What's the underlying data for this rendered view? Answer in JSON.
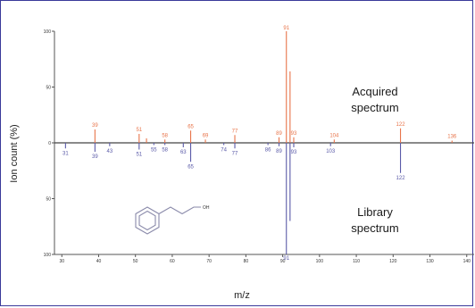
{
  "chart_data": {
    "type": "bar",
    "title": "",
    "xlabel": "m/z",
    "ylabel": "Ion count (%)",
    "xlim": [
      28,
      142
    ],
    "ylim": [
      -100,
      100
    ],
    "xticks": [
      "30",
      "40",
      "50",
      "60",
      "70",
      "80",
      "90",
      "100",
      "110",
      "120",
      "130",
      "140"
    ],
    "yticks": [
      {
        "value": 100,
        "label": "100"
      },
      {
        "value": 50,
        "label": "50"
      },
      {
        "value": 0,
        "label": "0"
      },
      {
        "value": -50,
        "label": "50"
      },
      {
        "value": -100,
        "label": "100"
      }
    ],
    "grid": false,
    "annotations": [
      {
        "lines": [
          "Acquired",
          "spectrum"
        ]
      },
      {
        "lines": [
          "Library",
          "spectrum"
        ]
      }
    ],
    "series": [
      {
        "color": "#e8744a",
        "points": [
          {
            "x": 39,
            "y": 12,
            "label": "39"
          },
          {
            "x": 51,
            "y": 8,
            "label": "51"
          },
          {
            "x": 53,
            "y": 4,
            "label": ""
          },
          {
            "x": 58,
            "y": 3,
            "label": "58"
          },
          {
            "x": 65,
            "y": 11,
            "label": "65"
          },
          {
            "x": 69,
            "y": 3,
            "label": "69"
          },
          {
            "x": 77,
            "y": 7,
            "label": "77"
          },
          {
            "x": 89,
            "y": 5,
            "label": "89"
          },
          {
            "x": 91,
            "y": 100,
            "label": "91"
          },
          {
            "x": 92,
            "y": 64,
            "label": ""
          },
          {
            "x": 93,
            "y": 5,
            "label": "93"
          },
          {
            "x": 104,
            "y": 3,
            "label": "104"
          },
          {
            "x": 122,
            "y": 13,
            "label": "122"
          },
          {
            "x": 136,
            "y": 2,
            "label": "136"
          }
        ]
      },
      {
        "color": "#5a5aa8",
        "points": [
          {
            "x": 31,
            "y": -5,
            "label": "31"
          },
          {
            "x": 39,
            "y": -8,
            "label": "39"
          },
          {
            "x": 43,
            "y": -3,
            "label": "43"
          },
          {
            "x": 51,
            "y": -6,
            "label": "51"
          },
          {
            "x": 55,
            "y": -2,
            "label": "55"
          },
          {
            "x": 58,
            "y": -2,
            "label": "58"
          },
          {
            "x": 63,
            "y": -4,
            "label": "63"
          },
          {
            "x": 65,
            "y": -17,
            "label": "65"
          },
          {
            "x": 74,
            "y": -2,
            "label": "74"
          },
          {
            "x": 77,
            "y": -5,
            "label": "77"
          },
          {
            "x": 86,
            "y": -2,
            "label": "86"
          },
          {
            "x": 89,
            "y": -3,
            "label": "89"
          },
          {
            "x": 91,
            "y": -100,
            "label": "91"
          },
          {
            "x": 92,
            "y": -70,
            "label": ""
          },
          {
            "x": 93,
            "y": -4,
            "label": "93"
          },
          {
            "x": 103,
            "y": -3,
            "label": "103"
          },
          {
            "x": 122,
            "y": -27,
            "label": "122"
          }
        ]
      }
    ],
    "structure": "phenylethanol",
    "structure_label": "OH"
  }
}
